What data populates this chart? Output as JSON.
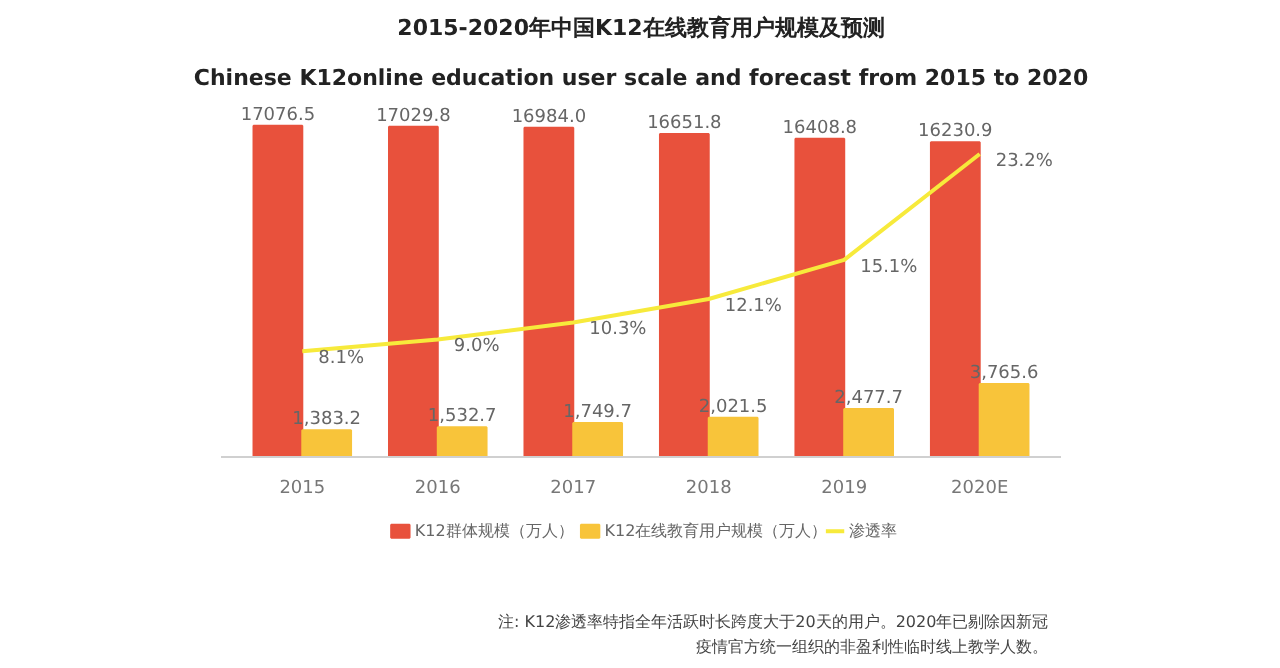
{
  "chart_data": {
    "type": "bar",
    "title": "2015-2020年中国K12在线教育用户规模及预测",
    "subtitle": "Chinese K12online education user scale and forecast from 2015 to 2020",
    "categories": [
      "2015",
      "2016",
      "2017",
      "2018",
      "2019",
      "2020E"
    ],
    "tick_labels": "x",
    "legend": "bottom",
    "series": [
      {
        "name": "K12群体规模（万人）",
        "color": "#e8513c",
        "values": [
          17076.5,
          17029.8,
          16984.0,
          16651.8,
          16408.8,
          16230.9
        ],
        "value_labels": [
          "17076.5",
          "17029.8",
          "16984.0",
          "16651.8",
          "16408.8",
          "16230.9"
        ]
      },
      {
        "name": "K12在线教育用户规模（万人）",
        "color": "#f8c43a",
        "values": [
          1383.2,
          1532.7,
          1749.7,
          2021.5,
          2477.7,
          3765.6
        ],
        "value_labels": [
          "1,383.2",
          "1,532.7",
          "1,749.7",
          "2,021.5",
          "2,477.7",
          "3,765.6"
        ]
      },
      {
        "name": "渗透率",
        "type": "line",
        "axis": "y2",
        "color": "#f7ea3b",
        "values": [
          8.1,
          9.0,
          10.3,
          12.1,
          15.1,
          23.2
        ],
        "value_labels": [
          "8.1%",
          "9.0%",
          "10.3%",
          "12.1%",
          "15.1%",
          "23.2%"
        ]
      }
    ],
    "annotations": [
      "注: K12渗透率特指全年活跃时长跨度大于20天的用户。2020年已剔除因新冠疫情官方统一组织的非盈利性临时线上教学人数。"
    ]
  }
}
